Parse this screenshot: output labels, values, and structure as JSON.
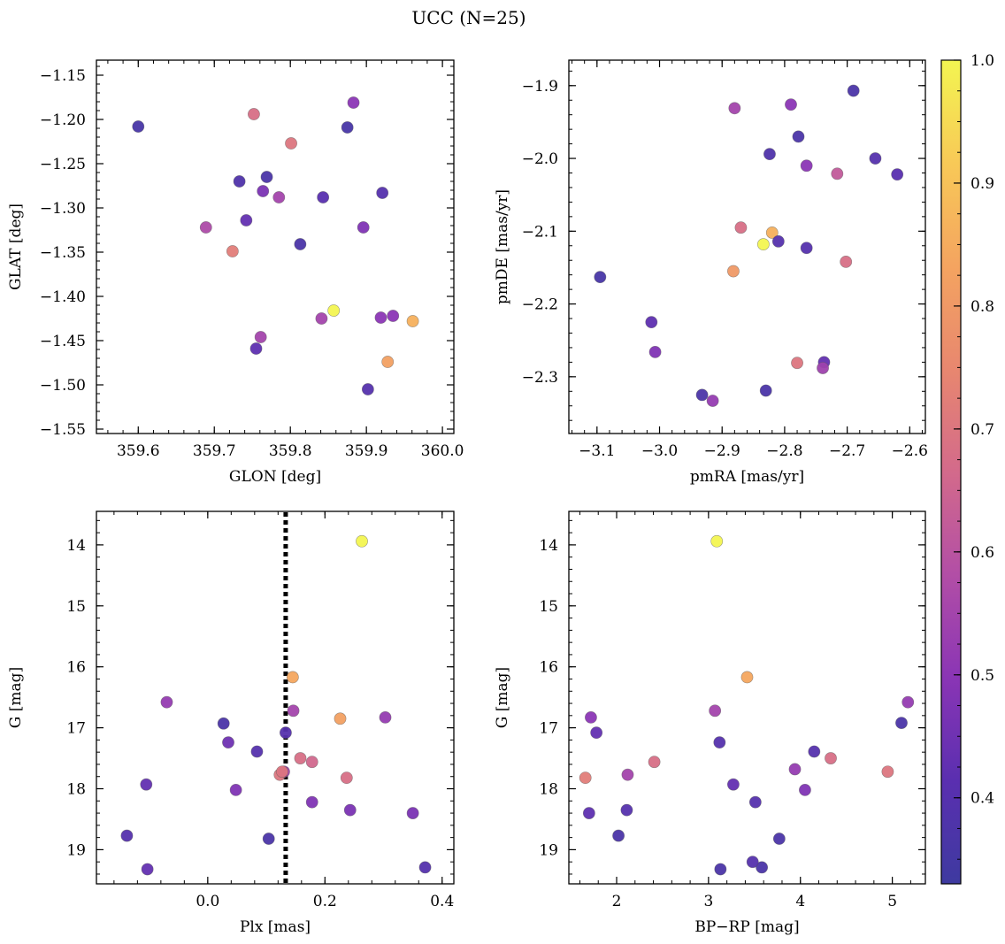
{
  "figure": {
    "title": "UCC (N=25)"
  },
  "colormap": {
    "name": "plasma",
    "stops": [
      "#3e3aa0",
      "#5a2fb0",
      "#8a35b5",
      "#b24ea6",
      "#d36a8b",
      "#e8876f",
      "#f4a460",
      "#f8c957",
      "#f3f551"
    ],
    "range": [
      0.33,
      1.0
    ],
    "ticks": [
      "0.4",
      "0.5",
      "0.6",
      "0.7",
      "0.8",
      "0.9",
      "1.0"
    ]
  },
  "chart_data": [
    {
      "type": "scatter",
      "xlabel": "GLON [deg]",
      "ylabel": "GLAT [deg]",
      "xlim": [
        359.545,
        360.015
      ],
      "ylim": [
        -1.555,
        -1.133
      ],
      "xticks": [
        "359.6",
        "359.7",
        "359.8",
        "359.9",
        "360.0"
      ],
      "yticks": [
        "-1.55",
        "-1.50",
        "-1.45",
        "-1.40",
        "-1.35",
        "-1.30",
        "-1.25",
        "-1.20",
        "-1.15"
      ],
      "x": [
        359.6,
        359.752,
        359.883,
        359.801,
        359.875,
        359.733,
        359.769,
        359.921,
        359.764,
        359.785,
        359.843,
        359.742,
        359.689,
        359.896,
        359.813,
        359.724,
        359.857,
        359.841,
        359.919,
        359.935,
        359.961,
        359.761,
        359.755,
        359.928,
        359.902
      ],
      "y": [
        -1.208,
        -1.194,
        -1.181,
        -1.227,
        -1.209,
        -1.27,
        -1.265,
        -1.283,
        -1.281,
        -1.288,
        -1.288,
        -1.314,
        -1.322,
        -1.322,
        -1.341,
        -1.349,
        -1.416,
        -1.425,
        -1.424,
        -1.422,
        -1.428,
        -1.446,
        -1.459,
        -1.474,
        -1.505
      ],
      "c": [
        0.36,
        0.68,
        0.5,
        0.7,
        0.36,
        0.38,
        0.37,
        0.4,
        0.47,
        0.55,
        0.41,
        0.43,
        0.57,
        0.48,
        0.37,
        0.72,
        1.0,
        0.55,
        0.5,
        0.5,
        0.86,
        0.55,
        0.42,
        0.82,
        0.4
      ]
    },
    {
      "type": "scatter",
      "xlabel": "pmRA [mas/yr]",
      "ylabel": "pmDE [mas/yr]",
      "xlim": [
        -3.145,
        -2.575
      ],
      "ylim": [
        -2.378,
        -1.865
      ],
      "xticks": [
        "-3.1",
        "-3.0",
        "-2.9",
        "-2.8",
        "-2.7",
        "-2.6"
      ],
      "yticks": [
        "-2.3",
        "-2.2",
        "-2.1",
        "-2.0",
        "-1.9"
      ],
      "x": [
        -2.69,
        -2.79,
        -2.88,
        -2.778,
        -2.824,
        -2.765,
        -2.716,
        -2.655,
        -2.62,
        -2.87,
        -2.82,
        -2.834,
        -2.81,
        -2.765,
        -2.702,
        -2.882,
        -3.095,
        -3.013,
        -3.007,
        -2.78,
        -2.737,
        -2.739,
        -2.932,
        -2.83,
        -2.915
      ],
      "y": [
        -1.907,
        -1.926,
        -1.931,
        -1.97,
        -1.994,
        -2.01,
        -2.021,
        -2.0,
        -2.022,
        -2.095,
        -2.102,
        -2.118,
        -2.114,
        -2.123,
        -2.142,
        -2.155,
        -2.163,
        -2.225,
        -2.266,
        -2.281,
        -2.28,
        -2.288,
        -2.325,
        -2.319,
        -2.333
      ],
      "c": [
        0.37,
        0.5,
        0.55,
        0.37,
        0.38,
        0.5,
        0.62,
        0.4,
        0.41,
        0.68,
        0.86,
        1.0,
        0.4,
        0.4,
        0.68,
        0.8,
        0.36,
        0.42,
        0.48,
        0.7,
        0.43,
        0.54,
        0.37,
        0.37,
        0.52
      ]
    },
    {
      "type": "scatter",
      "xlabel": "Plx [mas]",
      "ylabel": "G [mag]",
      "xlim": [
        -0.19,
        0.42
      ],
      "ylim": [
        19.56,
        13.45
      ],
      "y_inverted": true,
      "xticks": [
        "0.0",
        "0.2",
        "0.4"
      ],
      "yticks": [
        "14",
        "15",
        "16",
        "17",
        "18",
        "19"
      ],
      "vline": {
        "x": 0.133,
        "style": "dotted"
      },
      "x": [
        0.263,
        0.145,
        0.146,
        -0.07,
        0.303,
        0.226,
        0.027,
        0.133,
        0.035,
        0.084,
        0.158,
        0.178,
        -0.105,
        0.048,
        0.123,
        0.237,
        0.13,
        0.178,
        0.243,
        0.35,
        -0.138,
        0.104,
        -0.103,
        0.371,
        0.127
      ],
      "y": [
        13.94,
        16.17,
        16.72,
        16.58,
        16.83,
        16.85,
        16.93,
        17.08,
        17.24,
        17.39,
        17.5,
        17.56,
        17.93,
        18.02,
        17.77,
        17.82,
        17.72,
        18.22,
        18.35,
        18.4,
        18.77,
        18.82,
        19.32,
        19.29,
        17.72
      ],
      "c": [
        1.0,
        0.84,
        0.55,
        0.52,
        0.52,
        0.82,
        0.37,
        0.4,
        0.45,
        0.4,
        0.68,
        0.66,
        0.43,
        0.48,
        0.7,
        0.68,
        0.55,
        0.48,
        0.47,
        0.47,
        0.4,
        0.37,
        0.43,
        0.4,
        0.7
      ]
    },
    {
      "type": "scatter",
      "xlabel": "BP-RP [mag]",
      "ylabel": "G [mag]",
      "xlim": [
        1.48,
        5.36
      ],
      "ylim": [
        19.56,
        13.45
      ],
      "y_inverted": true,
      "xticks": [
        "2",
        "3",
        "4",
        "5"
      ],
      "yticks": [
        "14",
        "15",
        "16",
        "17",
        "18",
        "19"
      ],
      "x": [
        3.09,
        3.42,
        5.17,
        1.72,
        5.1,
        3.07,
        1.78,
        3.12,
        4.15,
        4.33,
        2.41,
        2.12,
        1.66,
        4.95,
        3.94,
        3.27,
        4.05,
        1.7,
        2.11,
        3.51,
        2.02,
        3.77,
        3.13,
        3.58,
        3.48
      ],
      "y": [
        13.94,
        16.17,
        16.58,
        16.83,
        16.92,
        16.72,
        17.08,
        17.24,
        17.39,
        17.5,
        17.56,
        17.77,
        17.82,
        17.72,
        17.68,
        17.93,
        18.02,
        18.4,
        18.35,
        18.22,
        18.77,
        18.82,
        19.32,
        19.29,
        19.2
      ],
      "c": [
        1.0,
        0.84,
        0.52,
        0.5,
        0.37,
        0.55,
        0.43,
        0.4,
        0.4,
        0.68,
        0.68,
        0.55,
        0.72,
        0.7,
        0.52,
        0.43,
        0.48,
        0.42,
        0.4,
        0.4,
        0.37,
        0.37,
        0.37,
        0.37,
        0.4
      ]
    }
  ]
}
